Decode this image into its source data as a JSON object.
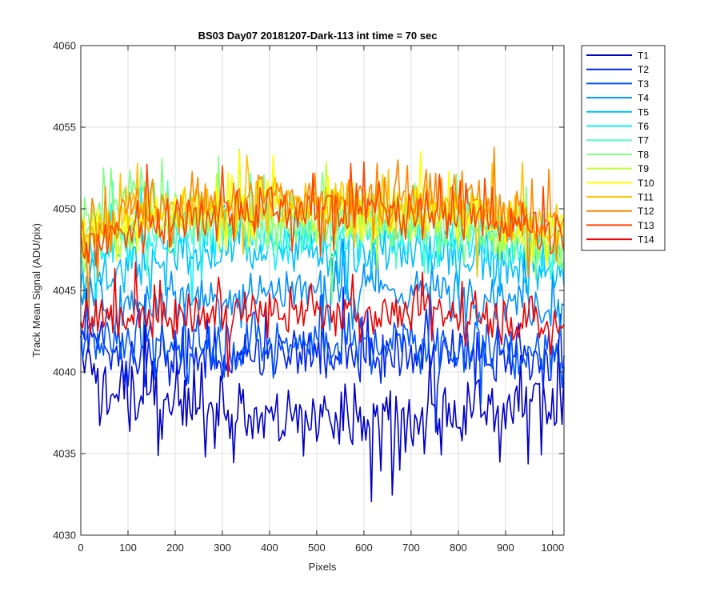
{
  "chart_data": {
    "type": "line",
    "title": "BS03 Day07 20181207-Dark-113 int time = 70 sec",
    "xlabel": "Pixels",
    "ylabel": "Track Mean Signal (ADU/pix)",
    "xlim": [
      0,
      1024
    ],
    "ylim": [
      4030,
      4060
    ],
    "xticks": [
      0,
      100,
      200,
      300,
      400,
      500,
      600,
      700,
      800,
      900,
      1000
    ],
    "yticks": [
      4030,
      4035,
      4040,
      4045,
      4050,
      4055,
      4060
    ],
    "grid": true,
    "legend_position": "outside-top-right",
    "sample_step": 4,
    "noise_amplitude": [
      2.1,
      1.6,
      1.6,
      1.5,
      1.6,
      1.5,
      1.5,
      1.7,
      1.5,
      1.6,
      1.6,
      1.8,
      1.6,
      1.3
    ],
    "series": [
      {
        "name": "T1",
        "color": "#0000c4",
        "x": [
          0,
          50,
          100,
          150,
          200,
          250,
          300,
          350,
          400,
          450,
          500,
          550,
          600,
          650,
          700,
          750,
          800,
          850,
          900,
          950,
          1000,
          1024
        ],
        "y": [
          4041.5,
          4039.5,
          4039.0,
          4038.5,
          4038.0,
          4037.8,
          4037.5,
          4037.3,
          4037.2,
          4037.2,
          4037.3,
          4037.2,
          4037.2,
          4037.2,
          4037.3,
          4037.4,
          4037.6,
          4037.8,
          4038.0,
          4038.2,
          4038.3,
          4038.3
        ]
      },
      {
        "name": "T2",
        "color": "#0022ee",
        "x": [
          0,
          50,
          100,
          150,
          200,
          250,
          300,
          350,
          400,
          450,
          500,
          550,
          600,
          650,
          700,
          750,
          800,
          850,
          900,
          950,
          1000,
          1024
        ],
        "y": [
          4042.5,
          4041.3,
          4041.0,
          4040.9,
          4040.8,
          4040.8,
          4040.8,
          4040.8,
          4040.9,
          4040.9,
          4041.0,
          4041.0,
          4041.0,
          4041.0,
          4041.0,
          4041.0,
          4041.0,
          4040.9,
          4040.8,
          4040.7,
          4040.6,
          4040.6
        ]
      },
      {
        "name": "T3",
        "color": "#0055ff",
        "x": [
          0,
          50,
          100,
          150,
          200,
          250,
          300,
          350,
          400,
          450,
          500,
          550,
          600,
          650,
          700,
          750,
          800,
          850,
          900,
          950,
          1000,
          1024
        ],
        "y": [
          4043.0,
          4042.0,
          4041.8,
          4041.6,
          4041.6,
          4041.6,
          4041.7,
          4041.7,
          4041.8,
          4041.8,
          4041.8,
          4041.8,
          4041.8,
          4041.8,
          4041.8,
          4041.7,
          4041.6,
          4041.5,
          4041.4,
          4041.2,
          4041.0,
          4041.0
        ]
      },
      {
        "name": "T4",
        "color": "#0090ff",
        "x": [
          0,
          50,
          100,
          150,
          200,
          250,
          300,
          350,
          400,
          450,
          500,
          550,
          600,
          650,
          700,
          750,
          800,
          850,
          900,
          950,
          1000,
          1024
        ],
        "y": [
          4044.5,
          4044.0,
          4044.2,
          4044.5,
          4044.6,
          4044.7,
          4044.8,
          4044.9,
          4045.0,
          4045.0,
          4045.0,
          4045.0,
          4045.0,
          4045.0,
          4045.0,
          4045.0,
          4044.9,
          4044.8,
          4044.6,
          4044.3,
          4044.0,
          4043.9
        ]
      },
      {
        "name": "T5",
        "color": "#00c0ff",
        "x": [
          0,
          50,
          100,
          150,
          200,
          250,
          300,
          350,
          400,
          450,
          500,
          550,
          600,
          650,
          700,
          750,
          800,
          850,
          900,
          950,
          1000,
          1024
        ],
        "y": [
          4046.0,
          4046.0,
          4046.5,
          4046.8,
          4047.0,
          4047.1,
          4047.2,
          4047.3,
          4047.3,
          4047.3,
          4047.3,
          4047.3,
          4047.3,
          4047.3,
          4047.3,
          4047.2,
          4047.1,
          4047.0,
          4046.8,
          4046.4,
          4046.0,
          4045.8
        ]
      },
      {
        "name": "T6",
        "color": "#11eeff",
        "x": [
          0,
          50,
          100,
          150,
          200,
          250,
          300,
          350,
          400,
          450,
          500,
          550,
          600,
          650,
          700,
          750,
          800,
          850,
          900,
          950,
          1000,
          1024
        ],
        "y": [
          4047.0,
          4047.2,
          4047.8,
          4048.0,
          4048.1,
          4048.2,
          4048.3,
          4048.3,
          4048.3,
          4048.3,
          4048.3,
          4048.3,
          4048.3,
          4048.3,
          4048.3,
          4048.2,
          4048.1,
          4048.0,
          4047.8,
          4047.4,
          4047.0,
          4046.8
        ]
      },
      {
        "name": "T7",
        "color": "#55ffc4",
        "x": [
          0,
          50,
          100,
          150,
          200,
          250,
          300,
          350,
          400,
          450,
          500,
          550,
          600,
          650,
          700,
          750,
          800,
          850,
          900,
          950,
          1000,
          1024
        ],
        "y": [
          4047.8,
          4048.4,
          4049.0,
          4049.0,
          4048.9,
          4048.8,
          4048.8,
          4048.8,
          4048.8,
          4048.8,
          4048.8,
          4048.8,
          4048.8,
          4048.8,
          4048.8,
          4048.8,
          4048.6,
          4048.4,
          4048.2,
          4047.8,
          4047.4,
          4047.2
        ]
      },
      {
        "name": "T8",
        "color": "#80ff80",
        "x": [
          0,
          50,
          100,
          150,
          200,
          250,
          300,
          350,
          400,
          450,
          500,
          550,
          600,
          650,
          700,
          750,
          800,
          850,
          900,
          950,
          1000,
          1024
        ],
        "y": [
          4048.5,
          4050.0,
          4051.5,
          4050.5,
          4049.5,
          4049.3,
          4049.2,
          4049.2,
          4049.2,
          4049.2,
          4049.2,
          4049.2,
          4049.2,
          4049.2,
          4049.2,
          4049.1,
          4049.0,
          4048.8,
          4048.5,
          4048.0,
          4047.6,
          4047.4
        ]
      },
      {
        "name": "T9",
        "color": "#c4ff37",
        "x": [
          0,
          50,
          100,
          150,
          200,
          250,
          300,
          350,
          400,
          450,
          500,
          550,
          600,
          650,
          700,
          750,
          800,
          850,
          900,
          950,
          1000,
          1024
        ],
        "y": [
          4048.2,
          4048.6,
          4049.0,
          4049.2,
          4049.3,
          4049.4,
          4049.5,
          4049.6,
          4049.6,
          4049.6,
          4049.6,
          4049.6,
          4049.6,
          4049.6,
          4049.6,
          4049.5,
          4049.3,
          4049.0,
          4048.7,
          4048.3,
          4048.0,
          4047.8
        ]
      },
      {
        "name": "T10",
        "color": "#ffff00",
        "x": [
          0,
          50,
          100,
          150,
          200,
          250,
          300,
          350,
          400,
          450,
          500,
          550,
          600,
          650,
          700,
          750,
          800,
          850,
          900,
          950,
          1000,
          1024
        ],
        "y": [
          4048.5,
          4049.0,
          4049.5,
          4049.7,
          4049.9,
          4050.0,
          4050.1,
          4050.2,
          4050.2,
          4050.2,
          4050.2,
          4050.2,
          4050.2,
          4050.2,
          4050.2,
          4050.1,
          4049.9,
          4049.7,
          4049.4,
          4049.0,
          4048.6,
          4048.4
        ]
      },
      {
        "name": "T11",
        "color": "#ffc400",
        "x": [
          0,
          50,
          100,
          150,
          200,
          250,
          300,
          350,
          400,
          450,
          500,
          550,
          600,
          650,
          700,
          750,
          800,
          850,
          900,
          950,
          1000,
          1024
        ],
        "y": [
          4048.2,
          4048.8,
          4049.3,
          4049.6,
          4049.8,
          4050.0,
          4050.1,
          4050.1,
          4050.2,
          4050.2,
          4050.2,
          4050.2,
          4050.2,
          4050.2,
          4050.2,
          4050.1,
          4050.0,
          4049.8,
          4049.5,
          4049.1,
          4048.7,
          4048.5
        ]
      },
      {
        "name": "T12",
        "color": "#ff8800",
        "x": [
          0,
          50,
          100,
          150,
          200,
          250,
          300,
          350,
          400,
          450,
          500,
          550,
          600,
          650,
          700,
          750,
          800,
          850,
          900,
          950,
          1000,
          1024
        ],
        "y": [
          4048.5,
          4049.0,
          4049.6,
          4049.9,
          4050.2,
          4050.4,
          4050.5,
          4050.6,
          4050.6,
          4050.6,
          4050.6,
          4050.6,
          4050.6,
          4050.6,
          4050.6,
          4050.5,
          4050.4,
          4050.2,
          4049.9,
          4049.5,
          4049.0,
          4048.8
        ]
      },
      {
        "name": "T13",
        "color": "#ff4400",
        "x": [
          0,
          50,
          100,
          150,
          200,
          250,
          300,
          350,
          400,
          450,
          500,
          550,
          600,
          650,
          700,
          750,
          800,
          850,
          900,
          950,
          1000,
          1024
        ],
        "y": [
          4047.5,
          4048.2,
          4048.8,
          4049.2,
          4049.5,
          4049.7,
          4049.9,
          4050.0,
          4050.0,
          4050.0,
          4050.0,
          4050.0,
          4050.0,
          4050.0,
          4050.0,
          4049.9,
          4049.8,
          4049.5,
          4049.2,
          4048.8,
          4048.3,
          4048.1
        ]
      },
      {
        "name": "T14",
        "color": "#ee0000",
        "x": [
          0,
          50,
          100,
          150,
          200,
          250,
          300,
          350,
          400,
          450,
          500,
          550,
          600,
          650,
          700,
          750,
          800,
          850,
          900,
          950,
          1000,
          1024
        ],
        "y": [
          4043.0,
          4043.3,
          4043.3,
          4043.4,
          4043.4,
          4043.5,
          4043.5,
          4043.6,
          4043.6,
          4043.6,
          4043.6,
          4043.6,
          4043.6,
          4043.6,
          4043.6,
          4043.6,
          4043.5,
          4043.4,
          4043.3,
          4043.1,
          4042.8,
          4042.7
        ]
      }
    ]
  }
}
